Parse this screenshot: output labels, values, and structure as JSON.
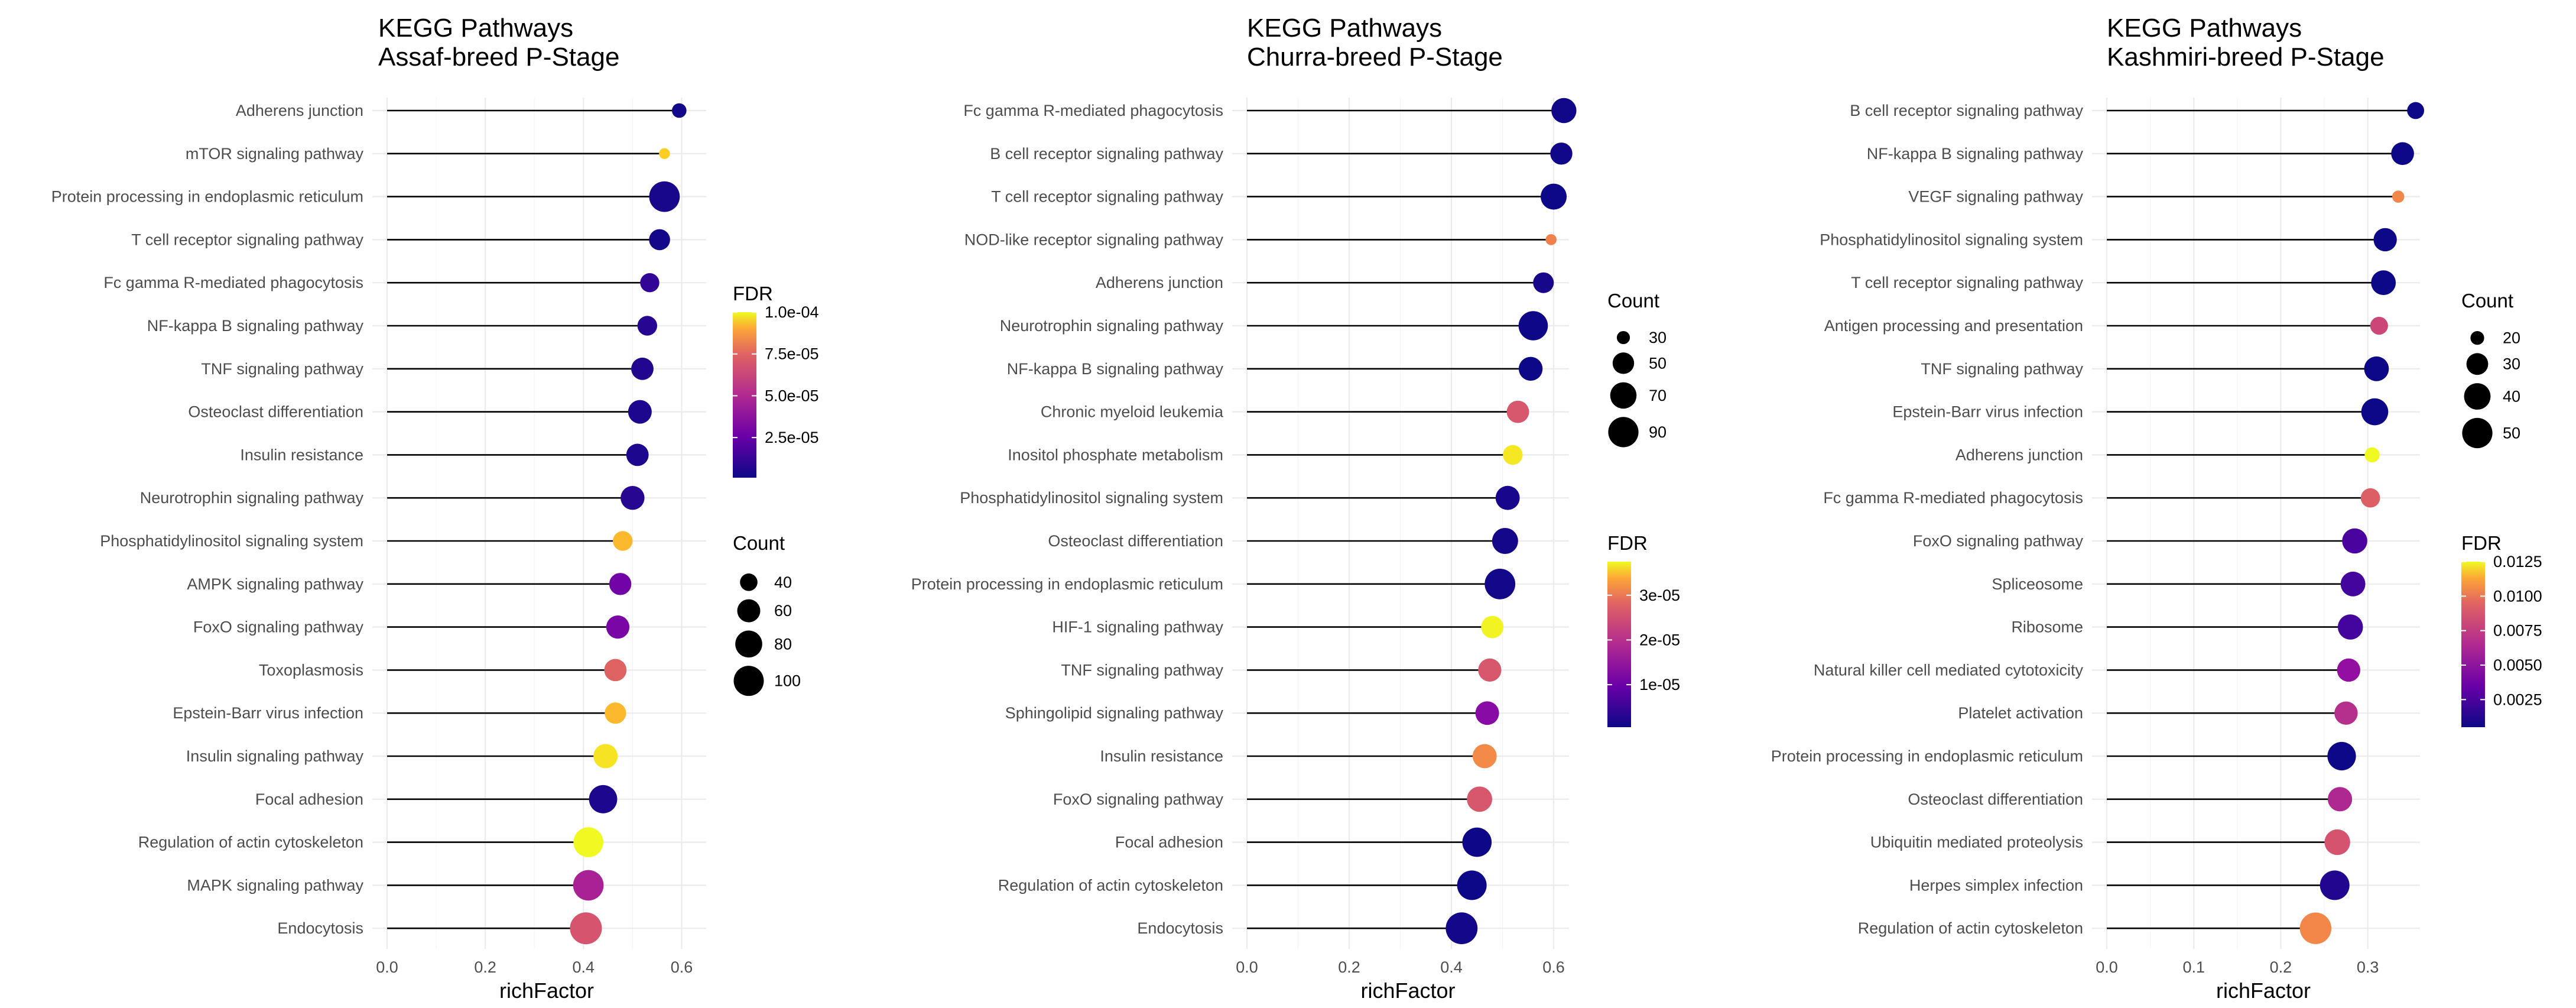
{
  "chart_data": [
    {
      "type": "scatter",
      "title": "KEGG Pathways",
      "subtitle": "Assaf-breed P-Stage",
      "xlabel": "richFactor",
      "xlim": [
        0,
        0.65
      ],
      "xticks": [
        0.0,
        0.2,
        0.4,
        0.6
      ],
      "xtick_labels": [
        "0.0",
        "0.2",
        "0.4",
        "0.6"
      ],
      "pathways": [
        "Adherens junction",
        "mTOR signaling pathway",
        "Protein processing in endoplasmic reticulum",
        "T cell receptor signaling pathway",
        "Fc gamma R-mediated phagocytosis",
        "NF-kappa B signaling pathway",
        "TNF signaling pathway",
        "Osteoclast differentiation",
        "Insulin resistance",
        "Neurotrophin signaling pathway",
        "Phosphatidylinositol signaling system",
        "AMPK signaling pathway",
        "FoxO signaling pathway",
        "Toxoplasmosis",
        "Epstein-Barr virus infection",
        "Insulin signaling pathway",
        "Focal adhesion",
        "Regulation of actin cytoskeleton",
        "MAPK signaling pathway",
        "Endocytosis"
      ],
      "richFactor": [
        0.595,
        0.565,
        0.565,
        0.555,
        0.535,
        0.53,
        0.52,
        0.515,
        0.51,
        0.5,
        0.48,
        0.475,
        0.47,
        0.465,
        0.465,
        0.445,
        0.44,
        0.41,
        0.41,
        0.405
      ],
      "count": [
        33,
        28,
        103,
        52,
        45,
        47,
        57,
        63,
        57,
        64,
        47,
        56,
        61,
        57,
        53,
        66,
        88,
        98,
        102,
        112
      ],
      "fdr": [
        2e-06,
        9e-05,
        3e-06,
        2e-06,
        8e-06,
        6e-06,
        5e-06,
        4e-06,
        4e-06,
        6e-06,
        8.5e-05,
        2.3e-05,
        2.5e-05,
        6e-05,
        8.5e-05,
        9.5e-05,
        4e-06,
        0.0001,
        3.8e-05,
        5.5e-05
      ],
      "fdr_legend": {
        "title": "FDR",
        "labels": [
          "1.0e-04",
          "7.5e-05",
          "5.0e-05",
          "2.5e-05"
        ],
        "breaks": [
          0.0001,
          7.5e-05,
          5e-05,
          2.5e-05
        ],
        "range": [
          1e-06,
          0.0001
        ]
      },
      "count_legend": {
        "title": "Count",
        "labels": [
          "40",
          "60",
          "80",
          "100"
        ],
        "breaks": [
          40,
          60,
          80,
          100
        ]
      },
      "size_range": [
        27,
        112
      ],
      "legend_order": "fdr-first"
    },
    {
      "type": "scatter",
      "title": "KEGG Pathways",
      "subtitle": "Churra-breed P-Stage",
      "xlabel": "richFactor",
      "xlim": [
        0,
        0.63
      ],
      "xticks": [
        0.0,
        0.2,
        0.4,
        0.6
      ],
      "xtick_labels": [
        "0.0",
        "0.2",
        "0.4",
        "0.6"
      ],
      "pathways": [
        "Fc gamma R-mediated phagocytosis",
        "B cell receptor signaling pathway",
        "T cell receptor signaling pathway",
        "NOD-like receptor signaling pathway",
        "Adherens junction",
        "Neurotrophin signaling pathway",
        "NF-kappa B signaling pathway",
        "Chronic myeloid leukemia",
        "Inositol phosphate metabolism",
        "Phosphatidylinositol signaling system",
        "Osteoclast differentiation",
        "Protein processing in endoplasmic reticulum",
        "HIF-1 signaling pathway",
        "TNF signaling pathway",
        "Sphingolipid signaling pathway",
        "Insulin resistance",
        "FoxO signaling pathway",
        "Focal adhesion",
        "Regulation of actin cytoskeleton",
        "Endocytosis"
      ],
      "richFactor": [
        0.62,
        0.615,
        0.6,
        0.595,
        0.58,
        0.56,
        0.555,
        0.53,
        0.52,
        0.51,
        0.505,
        0.495,
        0.48,
        0.475,
        0.47,
        0.465,
        0.455,
        0.45,
        0.44,
        0.42
      ],
      "count": [
        64,
        52,
        68,
        28,
        47,
        85,
        59,
        53,
        44,
        60,
        68,
        92,
        53,
        56,
        58,
        60,
        65,
        85,
        86,
        99
      ],
      "fdr": [
        8e-07,
        7e-07,
        5e-07,
        2.6e-05,
        1.2e-06,
        6e-07,
        5e-07,
        2.1e-05,
        3.6e-05,
        1.3e-06,
        1e-06,
        9e-07,
        3.7e-05,
        2.1e-05,
        1.1e-05,
        2.7e-05,
        2.1e-05,
        6e-07,
        5e-07,
        9e-07
      ],
      "fdr_legend": {
        "title": "FDR",
        "labels": [
          "3e-05",
          "2e-05",
          "1e-05"
        ],
        "breaks": [
          3e-05,
          2e-05,
          1e-05
        ],
        "range": [
          5e-07,
          3.75e-05
        ]
      },
      "count_legend": {
        "title": "Count",
        "labels": [
          "30",
          "50",
          "70",
          "90"
        ],
        "breaks": [
          30,
          50,
          70,
          90
        ]
      },
      "size_range": [
        27,
        100
      ],
      "legend_order": "count-first"
    },
    {
      "type": "scatter",
      "title": "KEGG Pathways",
      "subtitle": "Kashmiri-breed P-Stage",
      "xlabel": "richFactor",
      "xlim": [
        0,
        0.36
      ],
      "xticks": [
        0.0,
        0.1,
        0.2,
        0.3
      ],
      "xtick_labels": [
        "0.0",
        "0.1",
        "0.2",
        "0.3"
      ],
      "pathways": [
        "B cell receptor signaling pathway",
        "NF-kappa B signaling pathway",
        "VEGF signaling pathway",
        "Phosphatidylinositol signaling system",
        "T cell receptor signaling pathway",
        "Antigen processing and presentation",
        "TNF signaling pathway",
        "Epstein-Barr virus infection",
        "Adherens junction",
        "Fc gamma R-mediated phagocytosis",
        "FoxO signaling pathway",
        "Spliceosome",
        "Ribosome",
        "Natural killer cell mediated cytotoxicity",
        "Platelet activation",
        "Protein processing in endoplasmic reticulum",
        "Osteoclast differentiation",
        "Ubiquitin mediated proteolysis",
        "Herpes simplex infection",
        "Regulation of actin cytoskeleton"
      ],
      "richFactor": [
        0.355,
        0.34,
        0.335,
        0.32,
        0.318,
        0.313,
        0.31,
        0.308,
        0.305,
        0.303,
        0.285,
        0.283,
        0.28,
        0.278,
        0.275,
        0.27,
        0.268,
        0.265,
        0.262,
        0.24
      ],
      "count": [
        23,
        32,
        19,
        33,
        36,
        24,
        36,
        41,
        21,
        26,
        37,
        36,
        37,
        33,
        33,
        45,
        35,
        38,
        48,
        54
      ],
      "fdr": [
        0.0005,
        0.0005,
        0.009,
        0.0005,
        0.0005,
        0.0065,
        0.0005,
        0.0005,
        0.0125,
        0.0075,
        0.002,
        0.0018,
        0.0018,
        0.0042,
        0.0055,
        0.0005,
        0.0052,
        0.007,
        0.001,
        0.009
      ],
      "fdr_legend": {
        "title": "FDR",
        "labels": [
          "0.0125",
          "0.0100",
          "0.0075",
          "0.0050",
          "0.0025"
        ],
        "breaks": [
          0.0125,
          0.01,
          0.0075,
          0.005,
          0.0025
        ],
        "range": [
          0.0005,
          0.0125
        ]
      },
      "count_legend": {
        "title": "Count",
        "labels": [
          "20",
          "30",
          "40",
          "50"
        ],
        "breaks": [
          20,
          30,
          40,
          50
        ]
      },
      "size_range": [
        18,
        55
      ],
      "legend_order": "count-first"
    }
  ]
}
